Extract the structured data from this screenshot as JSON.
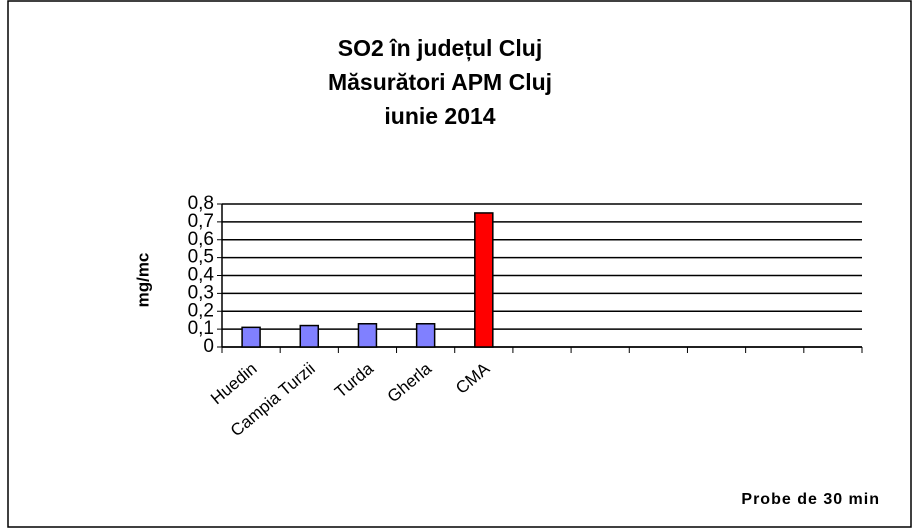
{
  "chart_data": {
    "type": "bar",
    "title": [
      "SO2 în județul Cluj",
      "Măsurători APM Cluj",
      "iunie 2014"
    ],
    "y_label": "mg/mc",
    "annotation": "Probe de 30 min",
    "categories": [
      "Huedin",
      "Campia Turzii",
      "Turda",
      "Gherla",
      "CMA",
      null,
      null,
      null,
      null,
      null,
      null
    ],
    "values": [
      0.11,
      0.12,
      0.13,
      0.13,
      0.75,
      null,
      null,
      null,
      null,
      null,
      null
    ],
    "colors": [
      "#8080ff",
      "#8080ff",
      "#8080ff",
      "#8080ff",
      "#ff0000",
      null,
      null,
      null,
      null,
      null,
      null
    ],
    "ylim": [
      0,
      0.8
    ],
    "yticks": [
      0,
      {
        "value": 0.1,
        "label": "0,1"
      },
      {
        "value": 0.2,
        "label": "0,2"
      },
      {
        "value": 0.3,
        "label": "0,3"
      },
      {
        "value": 0.4,
        "label": "0,4"
      },
      {
        "value": 0.5,
        "label": "0,5"
      },
      {
        "value": 0.6,
        "label": "0,6"
      },
      {
        "value": 0.7,
        "label": "0,7"
      },
      {
        "value": 0.8,
        "label": "0,8"
      }
    ],
    "grid": true
  }
}
